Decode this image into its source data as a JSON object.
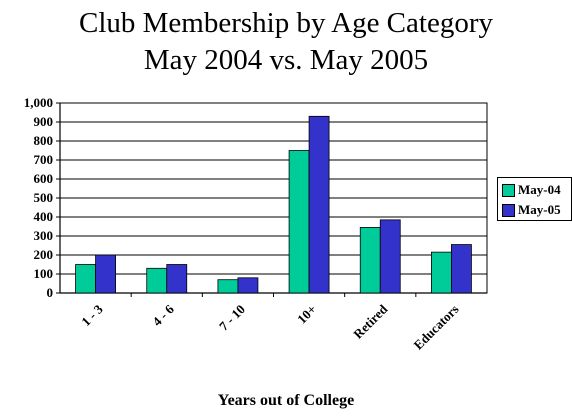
{
  "chart_data": {
    "type": "bar",
    "title_line1": "Club Membership by Age Category",
    "title_line2": "May 2004 vs. May 2005",
    "xlabel": "Years out of College",
    "ylabel": "",
    "ylim": [
      0,
      1000
    ],
    "yticks": [
      "0",
      "100",
      "200",
      "300",
      "400",
      "500",
      "600",
      "700",
      "800",
      "900",
      "1,000"
    ],
    "categories": [
      "1 - 3",
      "4 - 6",
      "7 - 10",
      "10+",
      "Retired",
      "Educators"
    ],
    "series": [
      {
        "name": "May-04",
        "color": "#00cc99",
        "values": [
          150,
          130,
          70,
          750,
          345,
          215
        ]
      },
      {
        "name": "May-05",
        "color": "#3333cc",
        "values": [
          200,
          150,
          80,
          930,
          385,
          255
        ]
      }
    ],
    "grid": true,
    "legend_position": "right"
  }
}
